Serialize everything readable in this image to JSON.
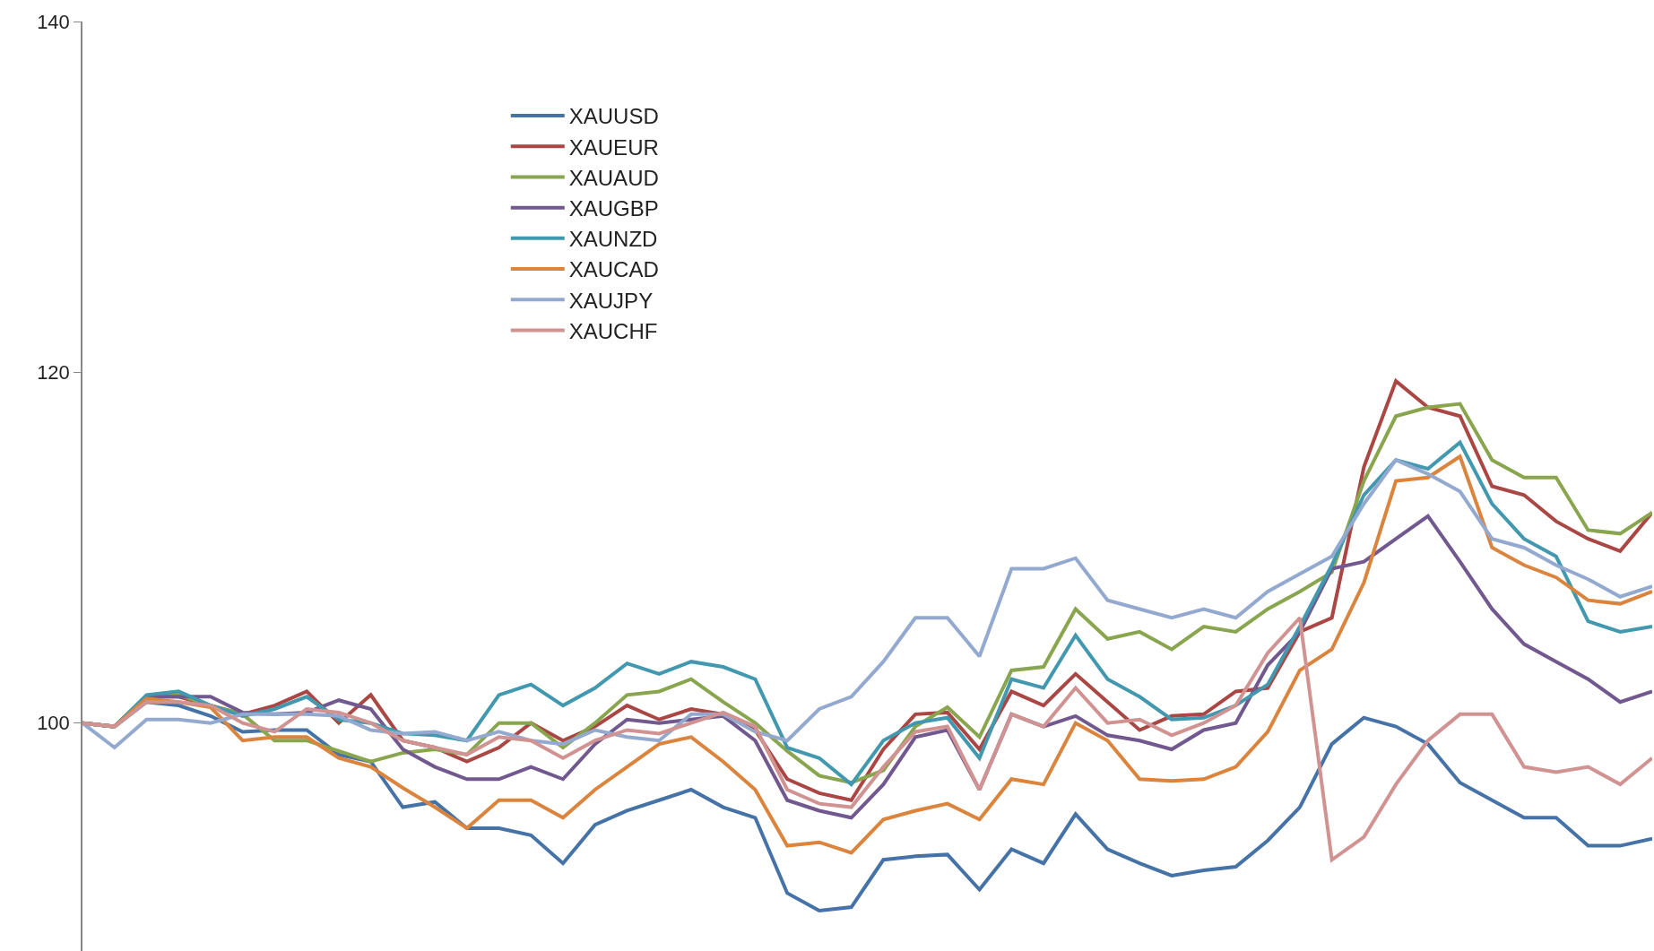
{
  "chart_data": {
    "type": "line",
    "categories": [
      null,
      null,
      null,
      null,
      null,
      null,
      null,
      null,
      null,
      null,
      null,
      null,
      null,
      null,
      null,
      null,
      null,
      null,
      null,
      null,
      null,
      null,
      null,
      null,
      null,
      null,
      null,
      null,
      null,
      null,
      null,
      null,
      null,
      null,
      null,
      null,
      null,
      null,
      null,
      null,
      null,
      null,
      null,
      null,
      null,
      null,
      null,
      null,
      null,
      null
    ],
    "series": [
      {
        "name": "XAUUSD",
        "color": "#4572a7",
        "values": [
          100,
          99.8,
          101.2,
          101,
          100.4,
          99.5,
          99.6,
          99.6,
          98.2,
          97.8,
          95.2,
          95.5,
          94,
          94,
          93.6,
          92,
          94.2,
          95,
          95.6,
          96.2,
          95.2,
          94.6,
          90.3,
          89.3,
          89.5,
          92.2,
          92.4,
          92.5,
          90.5,
          92.8,
          92,
          94.8,
          92.8,
          92,
          91.3,
          91.6,
          91.8,
          93.3,
          95.2,
          98.8,
          100.3,
          99.8,
          98.8,
          96.6,
          95.6,
          94.6,
          94.6,
          93,
          93,
          93.4
        ]
      },
      {
        "name": "XAUEUR",
        "color": "#aa4643",
        "values": [
          100,
          99.8,
          101.5,
          101.5,
          101,
          100.5,
          101,
          101.8,
          100,
          101.6,
          99,
          98.6,
          97.8,
          98.6,
          100,
          99,
          99.8,
          101,
          100.2,
          100.8,
          100.5,
          99.6,
          96.8,
          96,
          95.6,
          98.5,
          100.5,
          100.6,
          98.5,
          101.8,
          101,
          102.8,
          101.2,
          99.6,
          100.4,
          100.5,
          101.8,
          102,
          105.2,
          106,
          114.6,
          119.5,
          118,
          117.5,
          113.5,
          113,
          111.5,
          110.5,
          109.8,
          112
        ]
      },
      {
        "name": "XAUAUD",
        "color": "#89a54e",
        "values": [
          100,
          99.8,
          101.5,
          101.6,
          101,
          100.5,
          99,
          99,
          98.4,
          97.8,
          98.3,
          98.5,
          98.2,
          100,
          100,
          98.6,
          100,
          101.6,
          101.8,
          102.5,
          101.2,
          100,
          98.4,
          97,
          96.6,
          97.3,
          99.8,
          100.9,
          99.2,
          103,
          103.2,
          106.5,
          104.8,
          105.2,
          104.2,
          105.5,
          105.2,
          106.5,
          107.5,
          108.6,
          113.8,
          117.5,
          118,
          118.2,
          115,
          114,
          114,
          111,
          110.8,
          112
        ]
      },
      {
        "name": "XAUGBP",
        "color": "#71588f",
        "values": [
          100,
          99.8,
          101.5,
          101.5,
          101.5,
          100.6,
          100.5,
          100.6,
          101.3,
          100.8,
          98.5,
          97.5,
          96.8,
          96.8,
          97.5,
          96.8,
          98.8,
          100.2,
          100,
          100.2,
          100.4,
          99,
          95.6,
          95,
          94.6,
          96.5,
          99.2,
          99.6,
          96.2,
          100.5,
          99.8,
          100.4,
          99.3,
          99,
          98.5,
          99.6,
          100,
          103.3,
          105.2,
          108.8,
          109.2,
          110.5,
          111.8,
          109.2,
          106.5,
          104.5,
          103.5,
          102.5,
          101.2,
          101.8
        ]
      },
      {
        "name": "XAUNZD",
        "color": "#4198af",
        "values": [
          100,
          99.8,
          101.6,
          101.8,
          101,
          100.4,
          100.8,
          101.5,
          100.2,
          100,
          99.4,
          99.3,
          99,
          101.6,
          102.2,
          101,
          102,
          103.4,
          102.8,
          103.5,
          103.2,
          102.5,
          98.6,
          98,
          96.5,
          99,
          100,
          100.3,
          98,
          102.5,
          102,
          105,
          102.5,
          101.5,
          100.2,
          100.3,
          101,
          102.2,
          105.5,
          109,
          113,
          115,
          114.5,
          116,
          112.5,
          110.5,
          109.5,
          105.8,
          105.2,
          105.5
        ]
      },
      {
        "name": "XAUCAD",
        "color": "#db843d",
        "values": [
          100,
          99.8,
          101.4,
          101.2,
          100.9,
          99,
          99.2,
          99.2,
          98,
          97.5,
          96.3,
          95.2,
          94,
          95.6,
          95.6,
          94.6,
          96.2,
          97.5,
          98.8,
          99.2,
          97.8,
          96.2,
          93,
          93.2,
          92.6,
          94.5,
          95,
          95.4,
          94.5,
          96.8,
          96.5,
          100,
          99,
          96.8,
          96.7,
          96.8,
          97.5,
          99.5,
          103,
          104.2,
          108,
          113.8,
          114,
          115.2,
          110,
          109,
          108.3,
          107,
          106.8,
          107.5
        ]
      },
      {
        "name": "XAUJPY",
        "color": "#93a9cf",
        "values": [
          100,
          98.6,
          100.2,
          100.2,
          100,
          100.5,
          100.5,
          100.5,
          100.4,
          99.6,
          99.4,
          99.5,
          99,
          99.5,
          99,
          98.8,
          99.6,
          99.2,
          99,
          100.5,
          100.5,
          99.5,
          99,
          100.8,
          101.5,
          103.5,
          106,
          106,
          103.8,
          108.8,
          108.8,
          109.4,
          107,
          106.5,
          106,
          106.5,
          106,
          107.5,
          108.5,
          109.5,
          112.5,
          115,
          114.2,
          113.2,
          110.5,
          110,
          109,
          108.2,
          107.2,
          107.8
        ]
      },
      {
        "name": "XAUCHF",
        "color": "#d19392",
        "values": [
          100,
          99.8,
          101.2,
          101.2,
          101,
          100,
          99.5,
          100.8,
          100.6,
          100,
          99,
          98.6,
          98.2,
          99.2,
          99,
          98,
          99,
          99.6,
          99.4,
          100,
          100.6,
          99.8,
          96.2,
          95.4,
          95.2,
          97.5,
          99.5,
          99.8,
          96.2,
          100.5,
          99.8,
          102,
          100,
          100.2,
          99.3,
          100,
          101,
          104,
          106,
          92.2,
          93.5,
          96.5,
          99,
          100.5,
          100.5,
          97.5,
          97.2,
          97.5,
          96.5,
          98
        ]
      }
    ],
    "ylim": [
      87,
      140
    ],
    "yticks": [
      100,
      120,
      140
    ],
    "tick_labels": "y",
    "grid": false,
    "legend": "top left",
    "marker": "none",
    "line_style": "solid"
  }
}
